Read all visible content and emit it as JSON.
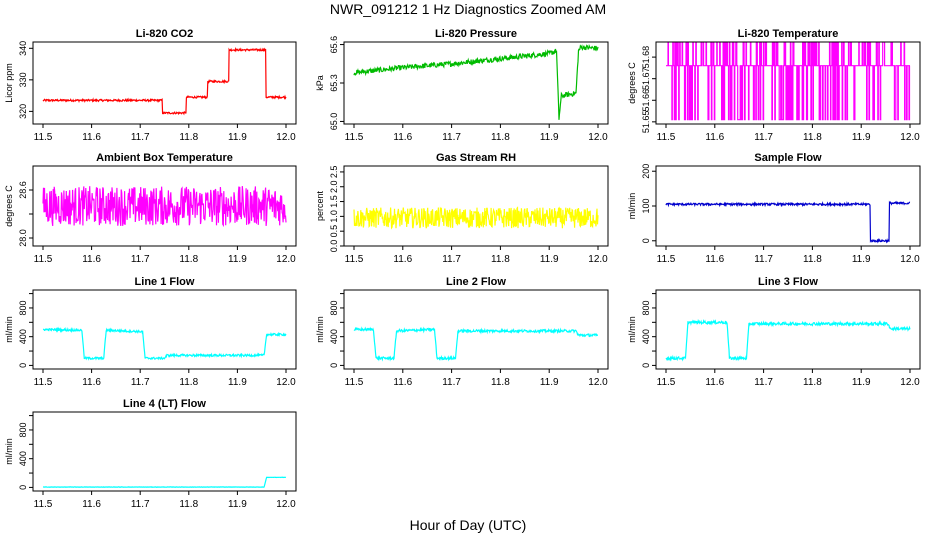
{
  "figure": {
    "title": "NWR_091212  1 Hz Diagnostics Zoomed AM",
    "xlabel": "Hour of Day (UTC)"
  },
  "chart_data": [
    {
      "id": "co2",
      "type": "line",
      "title": "Li-820 CO2",
      "ylabel": "Licor ppm",
      "color": "#ff0000",
      "xlim": [
        11.5,
        12.0
      ],
      "ylim": [
        316,
        342
      ],
      "yticks": [
        320,
        330,
        340
      ],
      "ytick_labels": [
        "320",
        "330",
        "340"
      ],
      "noise": 0.3,
      "series": [
        {
          "x": [
            11.5,
            11.745,
            11.745,
            11.794,
            11.794,
            11.838,
            11.838,
            11.882,
            11.882,
            11.958,
            11.958,
            12.0
          ],
          "y": [
            323.5,
            323.5,
            319.5,
            319.5,
            324.5,
            324.5,
            329.5,
            329.5,
            339.5,
            339.5,
            324.5,
            324.5
          ]
        }
      ]
    },
    {
      "id": "pressure",
      "type": "line",
      "title": "Li-820 Pressure",
      "ylabel": "kPa",
      "color": "#00bb00",
      "xlim": [
        11.5,
        12.0
      ],
      "ylim": [
        64.98,
        65.62
      ],
      "yticks": [
        65.0,
        65.3,
        65.6
      ],
      "ytick_labels": [
        "65.0",
        "65.3",
        "65.6"
      ],
      "noise": 0.02,
      "series": [
        {
          "x": [
            11.5,
            11.6,
            11.7,
            11.8,
            11.9,
            11.915,
            11.92,
            11.925,
            11.955,
            11.96,
            11.965,
            12.0
          ],
          "y": [
            65.38,
            65.42,
            65.45,
            65.49,
            65.53,
            65.55,
            65.02,
            65.2,
            65.22,
            65.55,
            65.58,
            65.57
          ]
        }
      ]
    },
    {
      "id": "licor-temp",
      "type": "line",
      "title": "Li-820 Temperature",
      "ylabel": "degrees C",
      "color": "#ff00ff",
      "xlim": [
        11.5,
        12.0
      ],
      "ylim": [
        51.649,
        51.687
      ],
      "yticks": [
        51.65,
        51.66,
        51.67,
        51.68
      ],
      "ytick_labels": [
        "51.65",
        "51.66",
        "51.67",
        "51.68"
      ],
      "levels": [
        51.651,
        51.676,
        51.687
      ],
      "series": [
        {
          "x": [
            11.5,
            12.0
          ],
          "y": [
            51.676,
            51.676
          ]
        }
      ]
    },
    {
      "id": "box-temp",
      "type": "line",
      "title": "Ambient Box Temperature",
      "ylabel": "degrees C",
      "color": "#ff00ff",
      "xlim": [
        11.5,
        12.0
      ],
      "ylim": [
        27.9,
        28.9
      ],
      "yticks": [
        28.0,
        28.3,
        28.6
      ],
      "ytick_labels": [
        "28.0",
        "",
        "28.6"
      ],
      "noise": 0.25,
      "series": [
        {
          "x": [
            11.5,
            12.0
          ],
          "y": [
            28.4,
            28.4
          ]
        }
      ]
    },
    {
      "id": "rh",
      "type": "line",
      "title": "Gas Stream RH",
      "ylabel": "percent",
      "color": "#ffff00",
      "xlim": [
        11.5,
        12.0
      ],
      "ylim": [
        0,
        2.7
      ],
      "yticks": [
        0.0,
        0.5,
        1.0,
        1.5,
        2.0,
        2.5
      ],
      "ytick_labels": [
        "0.0",
        "0.5",
        "1.0",
        "1.5",
        "2.0",
        "2.5"
      ],
      "noise": 0.35,
      "series": [
        {
          "x": [
            11.5,
            12.0
          ],
          "y": [
            0.95,
            0.95
          ]
        }
      ]
    },
    {
      "id": "sample-flow",
      "type": "line",
      "title": "Sample Flow",
      "ylabel": "ml/min",
      "color": "#0000cc",
      "xlim": [
        11.5,
        12.0
      ],
      "ylim": [
        -15,
        215
      ],
      "yticks": [
        0,
        100,
        200
      ],
      "ytick_labels": [
        "0",
        "100",
        "200"
      ],
      "noise": 3,
      "series": [
        {
          "x": [
            11.5,
            11.918,
            11.918,
            11.957,
            11.957,
            12.0
          ],
          "y": [
            105,
            105,
            0,
            0,
            108,
            108
          ]
        }
      ]
    },
    {
      "id": "line1-flow",
      "type": "line",
      "title": "Line 1 Flow",
      "ylabel": "ml/min",
      "color": "#00ffff",
      "xlim": [
        11.5,
        12.0
      ],
      "ylim": [
        -50,
        1050
      ],
      "yticks": [
        0,
        200,
        400,
        600,
        800,
        1000
      ],
      "ytick_labels": [
        "0",
        "",
        "400",
        "",
        "800",
        ""
      ],
      "noise": 15,
      "series": [
        {
          "x": [
            11.5,
            11.58,
            11.585,
            11.625,
            11.63,
            11.705,
            11.71,
            11.75,
            11.755,
            11.955,
            11.96,
            12.0
          ],
          "y": [
            500,
            490,
            100,
            100,
            490,
            470,
            100,
            100,
            140,
            140,
            430,
            430
          ]
        }
      ]
    },
    {
      "id": "line2-flow",
      "type": "line",
      "title": "Line 2 Flow",
      "ylabel": "ml/min",
      "color": "#00ffff",
      "xlim": [
        11.5,
        12.0
      ],
      "ylim": [
        -50,
        1050
      ],
      "yticks": [
        0,
        200,
        400,
        600,
        800,
        1000
      ],
      "ytick_labels": [
        "0",
        "",
        "400",
        "",
        "800",
        ""
      ],
      "noise": 18,
      "series": [
        {
          "x": [
            11.5,
            11.54,
            11.545,
            11.582,
            11.587,
            11.665,
            11.67,
            11.708,
            11.713,
            11.955,
            11.96,
            12.0
          ],
          "y": [
            500,
            500,
            100,
            100,
            480,
            500,
            100,
            100,
            480,
            480,
            420,
            420
          ]
        }
      ]
    },
    {
      "id": "line3-flow",
      "type": "line",
      "title": "Line 3 Flow",
      "ylabel": "ml/min",
      "color": "#00ffff",
      "xlim": [
        11.5,
        12.0
      ],
      "ylim": [
        -50,
        1050
      ],
      "yticks": [
        0,
        200,
        400,
        600,
        800,
        1000
      ],
      "ytick_labels": [
        "0",
        "",
        "400",
        "",
        "800",
        ""
      ],
      "noise": 20,
      "series": [
        {
          "x": [
            11.5,
            11.54,
            11.545,
            11.625,
            11.63,
            11.665,
            11.67,
            11.955,
            11.96,
            12.0
          ],
          "y": [
            100,
            100,
            600,
            600,
            100,
            100,
            580,
            580,
            510,
            510
          ]
        }
      ]
    },
    {
      "id": "line4-flow",
      "type": "line",
      "title": "Line 4 (LT) Flow",
      "ylabel": "ml/min",
      "color": "#00ffff",
      "xlim": [
        11.5,
        12.0
      ],
      "ylim": [
        -50,
        1050
      ],
      "yticks": [
        0,
        200,
        400,
        600,
        800,
        1000
      ],
      "ytick_labels": [
        "0",
        "",
        "400",
        "",
        "800",
        ""
      ],
      "noise": 2,
      "series": [
        {
          "x": [
            11.5,
            11.955,
            11.96,
            12.0
          ],
          "y": [
            5,
            5,
            140,
            140
          ]
        }
      ]
    }
  ],
  "x_axis": {
    "ticks": [
      11.5,
      11.6,
      11.7,
      11.8,
      11.9,
      12.0
    ],
    "tick_labels": [
      "11.5",
      "11.6",
      "11.7",
      "11.8",
      "11.9",
      "12.0"
    ]
  }
}
